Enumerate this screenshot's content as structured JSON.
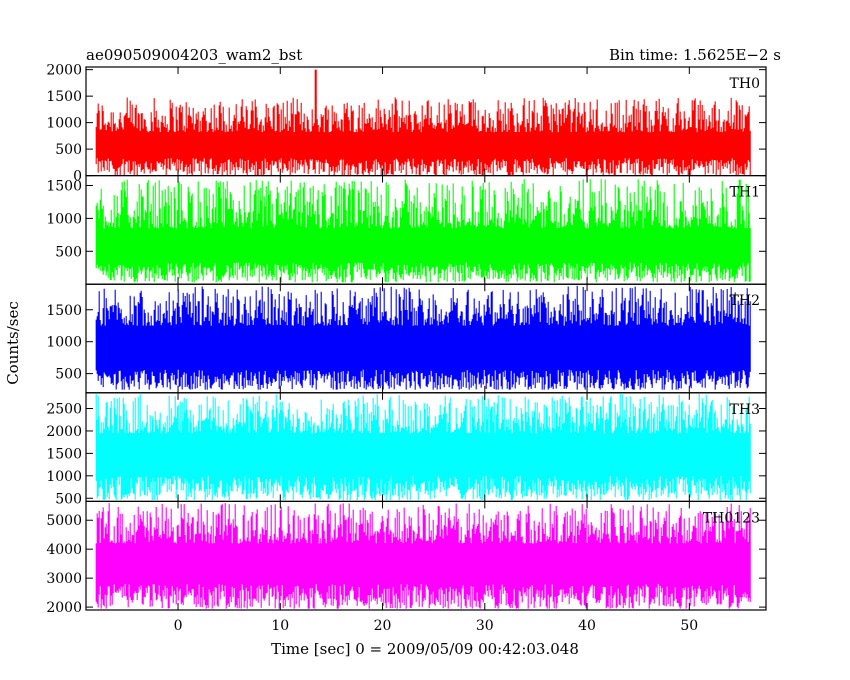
{
  "header": {
    "title": "ae090509004203_wam2_bst",
    "bin_time": "Bin time: 1.5625E−2 s"
  },
  "chart_data": {
    "type": "line",
    "ylabel": "Counts/sec",
    "xlabel": "Time [sec] 0 = 2009/05/09 00:42:03.048",
    "xlim": [
      -9,
      57.5
    ],
    "x_data_range": [
      -8,
      56
    ],
    "xticks": [
      0,
      10,
      20,
      30,
      40,
      50
    ],
    "panels": [
      {
        "name": "TH0",
        "color": "#ff0000",
        "ylim": [
          0,
          2050
        ],
        "yticks": [
          0,
          500,
          1000,
          1500,
          2000
        ],
        "band": {
          "low_min": 0,
          "low_max": 330,
          "high_min": 820,
          "high_max": 1480
        },
        "peak": {
          "x": 13.5,
          "y": 2000
        }
      },
      {
        "name": "TH1",
        "color": "#00ff00",
        "ylim": [
          0,
          1650
        ],
        "yticks": [
          500,
          1000,
          1500
        ],
        "band": {
          "low_min": 30,
          "low_max": 330,
          "high_min": 850,
          "high_max": 1600
        },
        "peak": null
      },
      {
        "name": "TH2",
        "color": "#0000ff",
        "ylim": [
          200,
          1900
        ],
        "yticks": [
          500,
          1000,
          1500
        ],
        "band": {
          "low_min": 250,
          "low_max": 560,
          "high_min": 1250,
          "high_max": 1880
        },
        "peak": null
      },
      {
        "name": "TH3",
        "color": "#00ffff",
        "ylim": [
          430,
          2850
        ],
        "yticks": [
          500,
          1000,
          1500,
          2000,
          2500
        ],
        "band": {
          "low_min": 460,
          "low_max": 1000,
          "high_min": 1950,
          "high_max": 2830
        },
        "peak": null
      },
      {
        "name": "TH0123",
        "color": "#ff00ff",
        "ylim": [
          1900,
          5650
        ],
        "yticks": [
          2000,
          3000,
          4000,
          5000
        ],
        "band": {
          "low_min": 1950,
          "low_max": 2800,
          "high_min": 4200,
          "high_max": 5600
        },
        "peak": null
      }
    ]
  }
}
